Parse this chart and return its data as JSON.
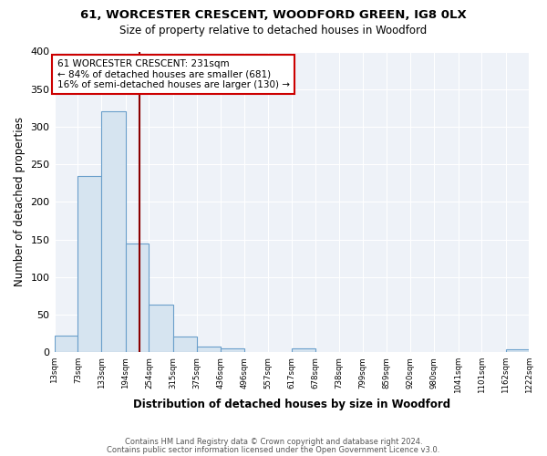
{
  "title_line1": "61, WORCESTER CRESCENT, WOODFORD GREEN, IG8 0LX",
  "title_line2": "Size of property relative to detached houses in Woodford",
  "xlabel": "Distribution of detached houses by size in Woodford",
  "ylabel": "Number of detached properties",
  "bin_edges": [
    13,
    73,
    133,
    194,
    254,
    315,
    375,
    436,
    496,
    557,
    617,
    678,
    738,
    799,
    859,
    920,
    980,
    1041,
    1101,
    1162,
    1222
  ],
  "bin_counts": [
    22,
    235,
    320,
    145,
    63,
    21,
    7,
    5,
    0,
    0,
    5,
    0,
    0,
    0,
    0,
    0,
    0,
    0,
    0,
    4
  ],
  "bar_color": "#d6e4f0",
  "bar_edge_color": "#6a9fcb",
  "vline_x": 231,
  "vline_color": "#8b0000",
  "annotation_text": "61 WORCESTER CRESCENT: 231sqm\n← 84% of detached houses are smaller (681)\n16% of semi-detached houses are larger (130) →",
  "annotation_box_color": "white",
  "annotation_box_edge_color": "#cc0000",
  "ylim": [
    0,
    400
  ],
  "yticks": [
    0,
    50,
    100,
    150,
    200,
    250,
    300,
    350,
    400
  ],
  "tick_labels": [
    "13sqm",
    "73sqm",
    "133sqm",
    "194sqm",
    "254sqm",
    "315sqm",
    "375sqm",
    "436sqm",
    "496sqm",
    "557sqm",
    "617sqm",
    "678sqm",
    "738sqm",
    "799sqm",
    "859sqm",
    "920sqm",
    "980sqm",
    "1041sqm",
    "1101sqm",
    "1162sqm",
    "1222sqm"
  ],
  "footer_line1": "Contains HM Land Registry data © Crown copyright and database right 2024.",
  "footer_line2": "Contains public sector information licensed under the Open Government Licence v3.0.",
  "bg_color": "#ffffff",
  "plot_bg_color": "#eef2f8",
  "grid_color": "white"
}
